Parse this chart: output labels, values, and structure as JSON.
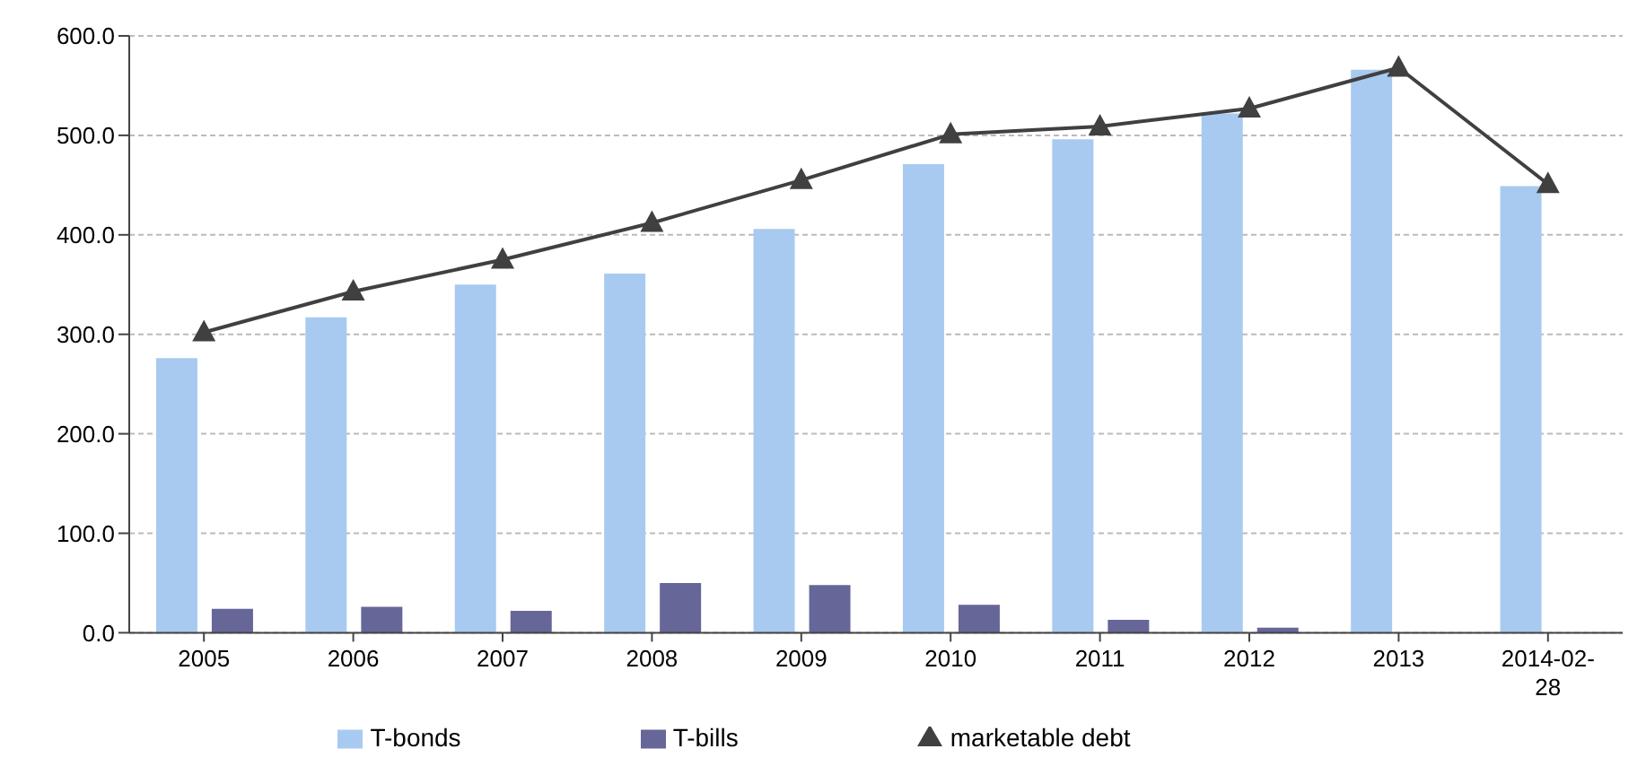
{
  "chart_data": {
    "type": "bar",
    "categories": [
      "2005",
      "2006",
      "2007",
      "2008",
      "2009",
      "2010",
      "2011",
      "2012",
      "2013",
      "2014-02-28"
    ],
    "series": [
      {
        "name": "T-bonds",
        "color": "#a8caf0",
        "values": [
          276,
          317,
          350,
          361,
          406,
          471,
          496,
          522,
          566,
          449
        ]
      },
      {
        "name": "T-bills",
        "color": "#666699",
        "values": [
          24,
          26,
          22,
          50,
          48,
          28,
          13,
          5,
          null,
          null
        ]
      },
      {
        "name": "marketable debt",
        "type": "line",
        "color": "#404040",
        "marker": "triangle",
        "values": [
          302,
          343,
          375,
          412,
          455,
          501,
          509,
          527,
          568,
          451
        ]
      }
    ],
    "ylim": [
      0,
      600
    ],
    "yticks": [
      {
        "value": 0,
        "label": "0.0"
      },
      {
        "value": 100,
        "label": "100.0"
      },
      {
        "value": 200,
        "label": "200.0"
      },
      {
        "value": 300,
        "label": "300.0"
      },
      {
        "value": 400,
        "label": "400.0"
      },
      {
        "value": 500,
        "label": "500.0"
      },
      {
        "value": 600,
        "label": "600.0"
      }
    ],
    "grid": "y",
    "legend": "bottom"
  }
}
